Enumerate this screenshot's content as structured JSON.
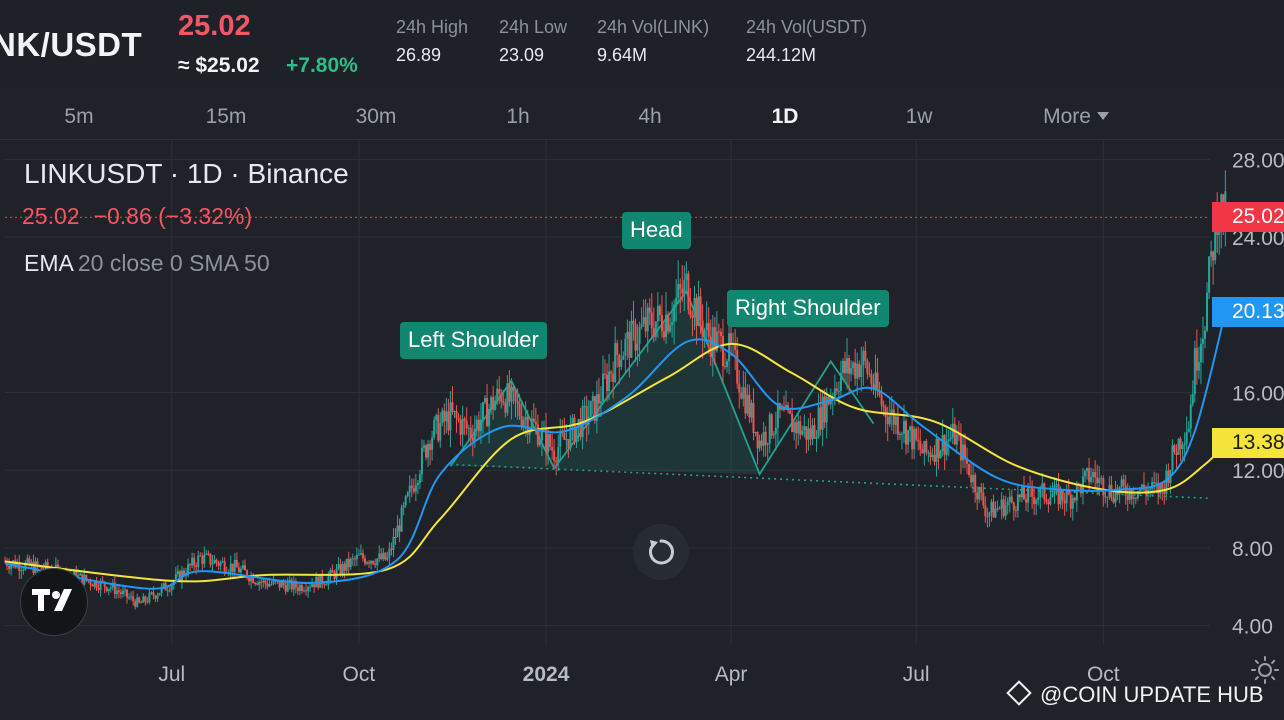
{
  "header": {
    "pair": "NK/USDT",
    "last_price": "25.02",
    "approx_price": "≈ $25.02",
    "change_pct": "+7.80%",
    "stats": [
      {
        "label": "24h High",
        "value": "26.89"
      },
      {
        "label": "24h Low",
        "value": "23.09"
      },
      {
        "label": "24h Vol(LINK)",
        "value": "9.64M"
      },
      {
        "label": "24h Vol(USDT)",
        "value": "244.12M"
      }
    ]
  },
  "timeframes": [
    {
      "label": "5m",
      "active": false
    },
    {
      "label": "15m",
      "active": false
    },
    {
      "label": "30m",
      "active": false
    },
    {
      "label": "1h",
      "active": false
    },
    {
      "label": "4h",
      "active": false
    },
    {
      "label": "1D",
      "active": true
    },
    {
      "label": "1w",
      "active": false
    },
    {
      "label": "More",
      "active": false
    }
  ],
  "legend": {
    "title": "LINKUSDT · 1D · Binance",
    "close": "25.02",
    "change": "−0.86 (−3.32%)",
    "indicator_name": "EMA",
    "indicator_params": "20 close 0 SMA 50"
  },
  "annotations": {
    "left_shoulder": "Left Shoulder",
    "head": "Head",
    "right_shoulder": "Right Shoulder"
  },
  "price_tags": [
    {
      "label": "25.02",
      "value": 25.02,
      "color": "#f23645"
    },
    {
      "label": "20.13",
      "value": 20.13,
      "color": "#2196f3"
    },
    {
      "label": "13.38",
      "value": 13.38,
      "color": "#f5e53b"
    }
  ],
  "colors": {
    "up": "#26a69a",
    "down": "#ef5350",
    "ema": "#2196f3",
    "sma": "#f5e53b",
    "pattern": "#1fa48b",
    "last_price_line": "#f23645"
  },
  "watermark": "@COIN UPDATE HUB",
  "chart_data": {
    "type": "candlestick",
    "y_axis_ticks": [
      "28.00",
      "24.00",
      "16.00",
      "12.00",
      "8.00",
      "4.00"
    ],
    "y_axis_tick_values": [
      28,
      24,
      16,
      12,
      8,
      4
    ],
    "ylim": [
      3,
      29
    ],
    "x_axis_labels": [
      "Jul",
      "Oct",
      "2024",
      "Apr",
      "Jul",
      "Oct"
    ],
    "x_axis_dates": [
      "2023-07-01",
      "2023-10-01",
      "2024-01-01",
      "2024-04-01",
      "2024-07-01",
      "2024-10-01"
    ],
    "xlim": [
      "2023-04-10",
      "2024-11-20"
    ],
    "last_price": 25.02,
    "price_path": [
      [
        "2023-04-10",
        7.3
      ],
      [
        "2023-05-01",
        6.9
      ],
      [
        "2023-06-01",
        6.0
      ],
      [
        "2023-06-15",
        5.1
      ],
      [
        "2023-07-01",
        6.2
      ],
      [
        "2023-07-15",
        7.5
      ],
      [
        "2023-08-01",
        7.0
      ],
      [
        "2023-08-15",
        6.2
      ],
      [
        "2023-09-01",
        6.0
      ],
      [
        "2023-09-15",
        6.4
      ],
      [
        "2023-10-01",
        7.5
      ],
      [
        "2023-10-15",
        7.4
      ],
      [
        "2023-10-25",
        10.5
      ],
      [
        "2023-11-05",
        13.8
      ],
      [
        "2023-11-15",
        14.8
      ],
      [
        "2023-11-25",
        14.0
      ],
      [
        "2023-12-10",
        16.0
      ],
      [
        "2023-12-25",
        14.4
      ],
      [
        "2024-01-05",
        13.0
      ],
      [
        "2024-01-25",
        15.2
      ],
      [
        "2024-02-05",
        18.0
      ],
      [
        "2024-02-20",
        19.5
      ],
      [
        "2024-03-01",
        20.0
      ],
      [
        "2024-03-10",
        21.5
      ],
      [
        "2024-03-20",
        19.0
      ],
      [
        "2024-04-01",
        18.0
      ],
      [
        "2024-04-15",
        13.5
      ],
      [
        "2024-04-25",
        14.8
      ],
      [
        "2024-05-10",
        13.8
      ],
      [
        "2024-05-25",
        17.0
      ],
      [
        "2024-06-05",
        17.6
      ],
      [
        "2024-06-15",
        15.2
      ],
      [
        "2024-06-25",
        14.2
      ],
      [
        "2024-07-05",
        12.8
      ],
      [
        "2024-07-20",
        13.8
      ],
      [
        "2024-08-05",
        9.8
      ],
      [
        "2024-08-20",
        10.5
      ],
      [
        "2024-09-01",
        10.8
      ],
      [
        "2024-09-15",
        10.6
      ],
      [
        "2024-09-25",
        11.8
      ],
      [
        "2024-10-05",
        10.9
      ],
      [
        "2024-10-20",
        11.0
      ],
      [
        "2024-10-30",
        11.0
      ],
      [
        "2024-11-05",
        13.0
      ],
      [
        "2024-11-12",
        14.5
      ],
      [
        "2024-11-15",
        17.5
      ],
      [
        "2024-11-20",
        20.0
      ],
      [
        "2024-11-26",
        25.5
      ],
      [
        "2024-11-30",
        25.02
      ]
    ],
    "ema20": [
      [
        "2023-04-10",
        7.2
      ],
      [
        "2023-06-20",
        5.9
      ],
      [
        "2023-07-15",
        6.8
      ],
      [
        "2023-09-10",
        6.2
      ],
      [
        "2023-10-20",
        7.4
      ],
      [
        "2023-11-10",
        11.8
      ],
      [
        "2023-12-10",
        14.2
      ],
      [
        "2024-01-10",
        14.0
      ],
      [
        "2024-02-10",
        15.8
      ],
      [
        "2024-03-10",
        18.6
      ],
      [
        "2024-04-01",
        18.0
      ],
      [
        "2024-04-25",
        15.3
      ],
      [
        "2024-05-20",
        15.6
      ],
      [
        "2024-06-10",
        16.2
      ],
      [
        "2024-07-05",
        14.2
      ],
      [
        "2024-08-10",
        11.6
      ],
      [
        "2024-09-10",
        11.0
      ],
      [
        "2024-10-10",
        11.0
      ],
      [
        "2024-11-01",
        11.5
      ],
      [
        "2024-11-15",
        14.0
      ],
      [
        "2024-11-30",
        20.13
      ]
    ],
    "sma50": [
      [
        "2023-04-10",
        7.3
      ],
      [
        "2023-07-01",
        6.3
      ],
      [
        "2023-08-15",
        6.6
      ],
      [
        "2023-10-15",
        6.9
      ],
      [
        "2023-11-10",
        9.5
      ],
      [
        "2023-12-15",
        13.6
      ],
      [
        "2024-01-20",
        14.5
      ],
      [
        "2024-03-01",
        16.8
      ],
      [
        "2024-04-01",
        18.5
      ],
      [
        "2024-05-01",
        17.0
      ],
      [
        "2024-06-01",
        15.2
      ],
      [
        "2024-07-10",
        14.5
      ],
      [
        "2024-08-20",
        12.2
      ],
      [
        "2024-10-01",
        11.0
      ],
      [
        "2024-11-01",
        11.0
      ],
      [
        "2024-11-20",
        12.3
      ],
      [
        "2024-11-30",
        13.38
      ]
    ],
    "pattern": {
      "zigzag": [
        [
          "2023-11-15",
          12.2
        ],
        [
          "2023-12-15",
          16.6
        ],
        [
          "2024-01-05",
          12.1
        ],
        [
          "2024-03-10",
          21.2
        ],
        [
          "2024-04-15",
          11.8
        ],
        [
          "2024-05-20",
          17.6
        ],
        [
          "2024-06-10",
          14.4
        ]
      ],
      "neckline": [
        [
          "2023-11-15",
          12.3
        ],
        [
          "2024-12-01",
          10.5
        ]
      ]
    }
  }
}
